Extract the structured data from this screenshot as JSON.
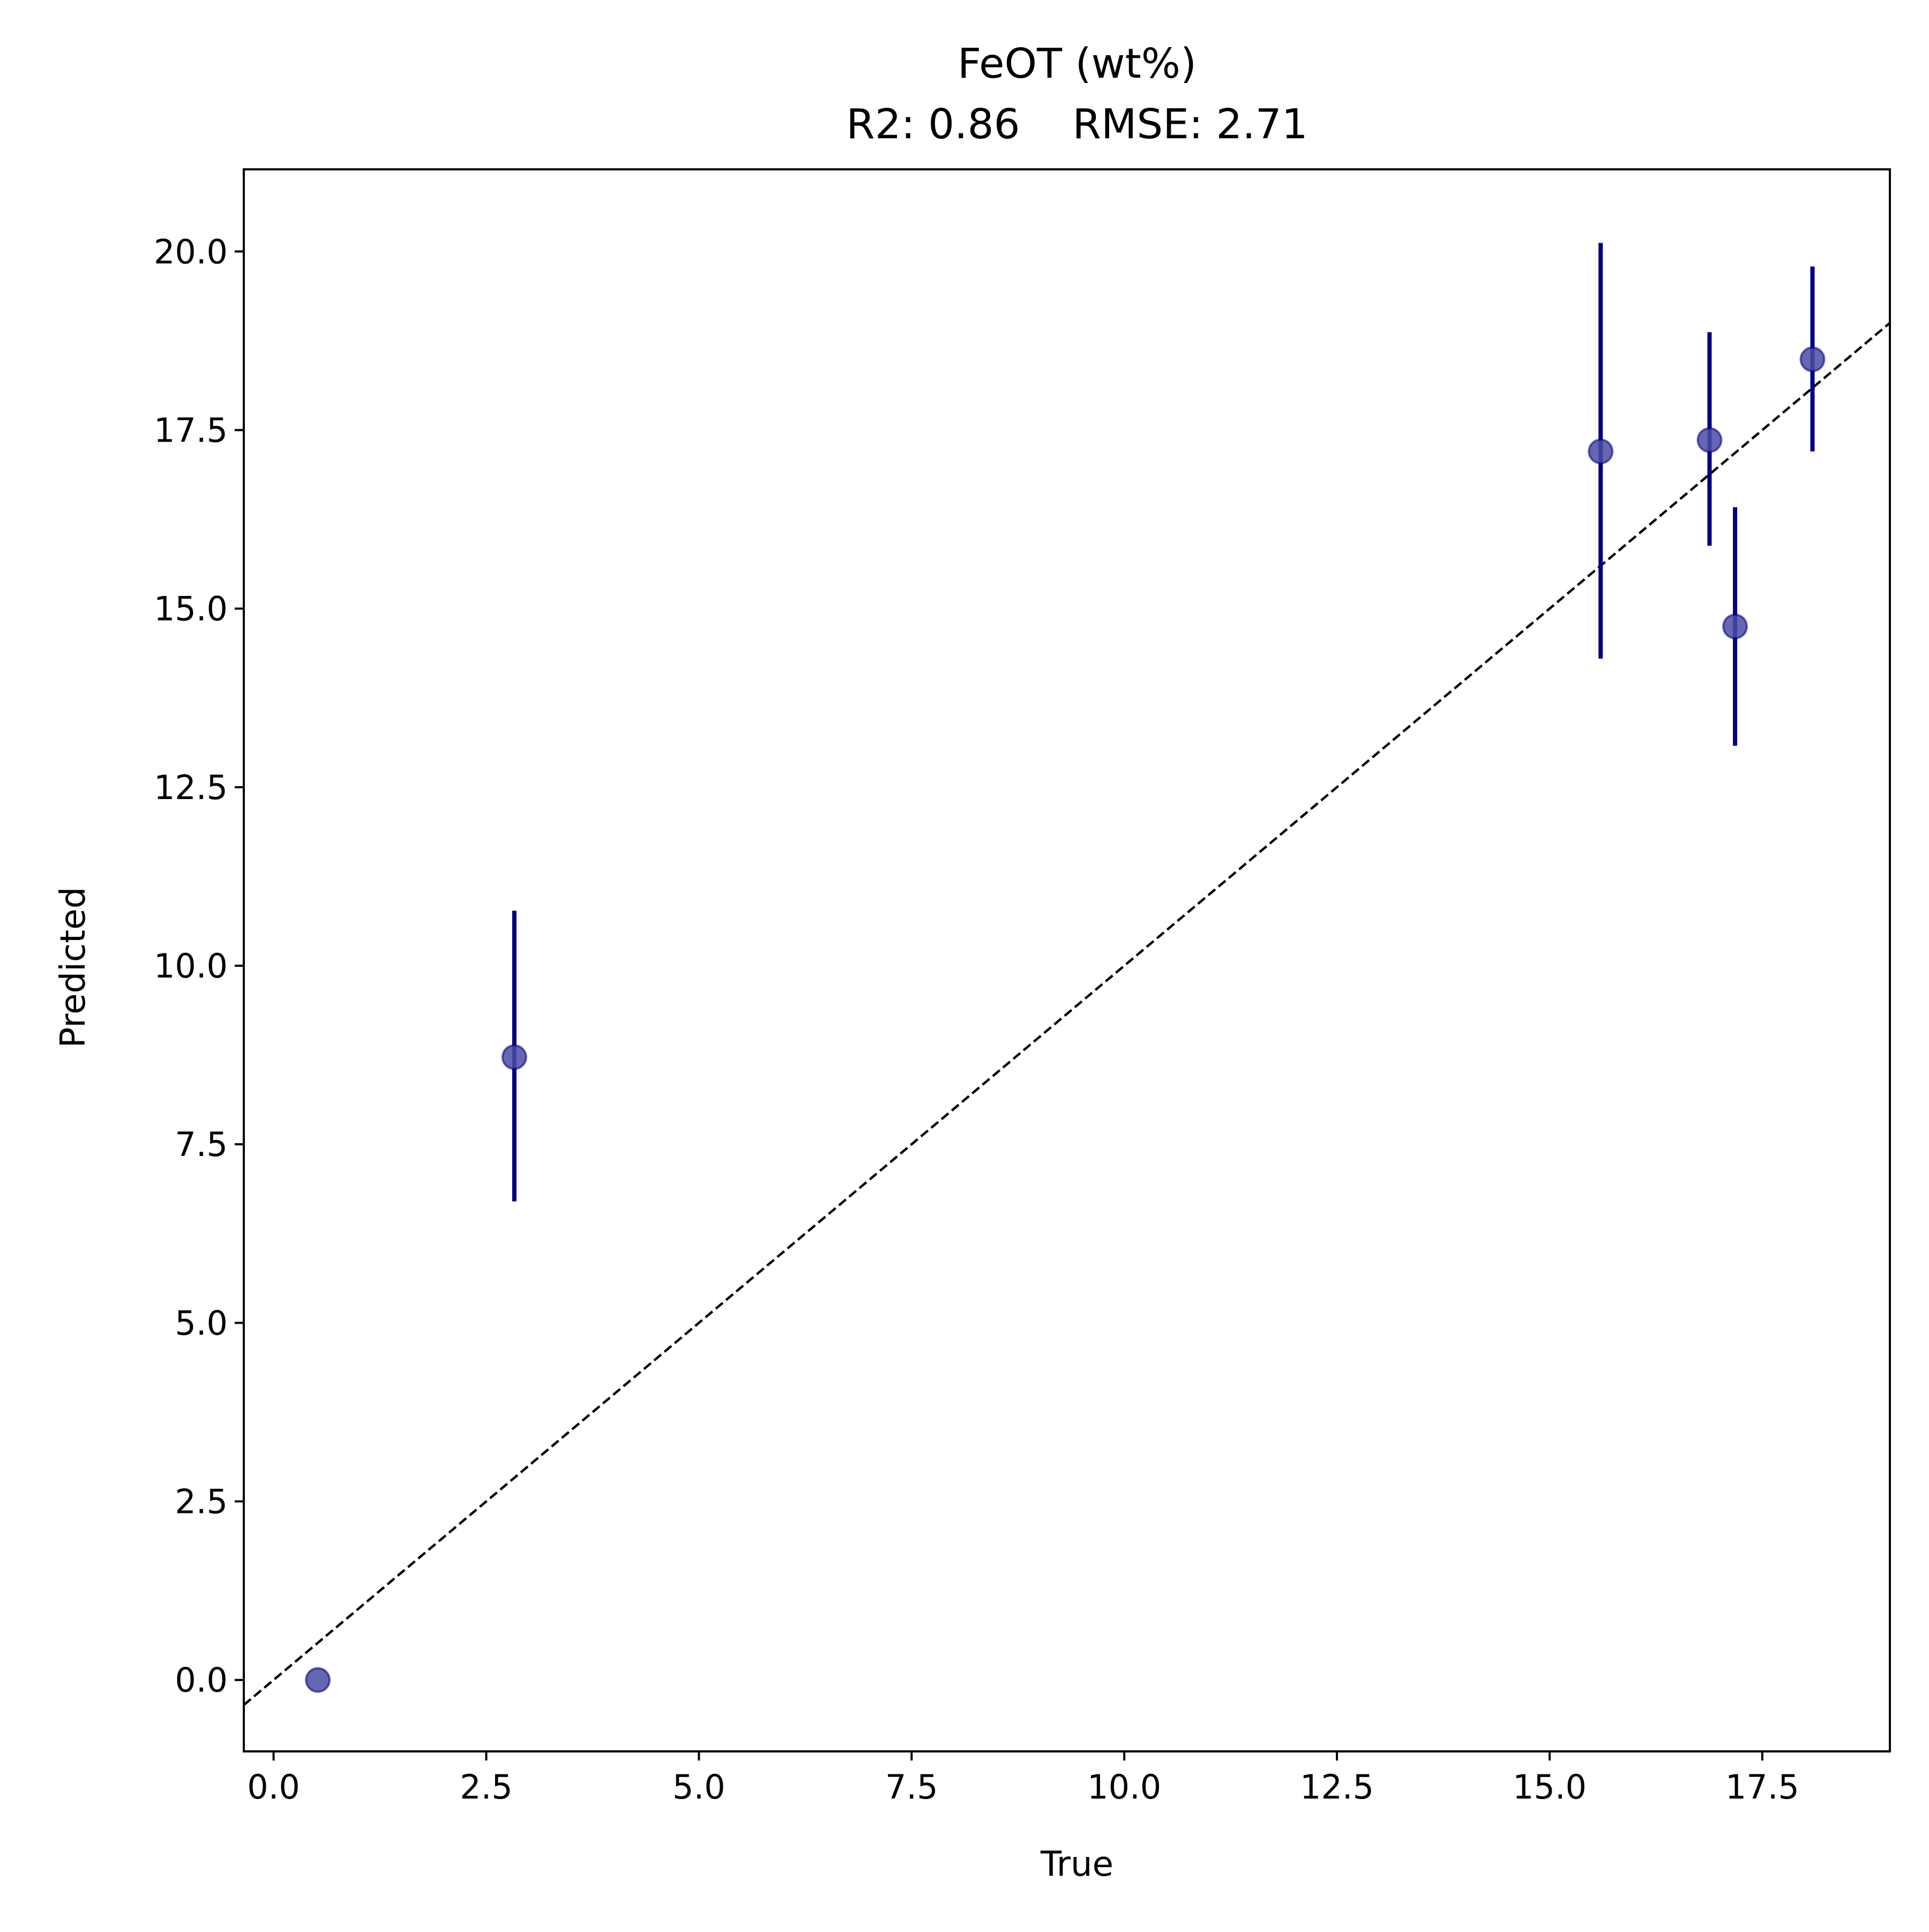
{
  "chart_data": {
    "type": "scatter",
    "title": "FeOT (wt%)",
    "subtitle": "R2: 0.86    RMSE: 2.71",
    "xlabel": "True",
    "ylabel": "Predicted",
    "xlim": [
      -0.35,
      19.0
    ],
    "ylim": [
      -1.0,
      21.15
    ],
    "x_ticks": [
      0.0,
      2.5,
      5.0,
      7.5,
      10.0,
      12.5,
      15.0,
      17.5
    ],
    "y_ticks": [
      0.0,
      2.5,
      5.0,
      7.5,
      10.0,
      12.5,
      15.0,
      17.5,
      20.0
    ],
    "x_tick_labels": [
      "0.0",
      "2.5",
      "5.0",
      "7.5",
      "10.0",
      "12.5",
      "15.0",
      "17.5"
    ],
    "y_tick_labels": [
      "0.0",
      "2.5",
      "5.0",
      "7.5",
      "10.0",
      "12.5",
      "15.0",
      "17.5",
      "20.0"
    ],
    "grid": false,
    "reference_line": {
      "style": "dashed",
      "color": "#000000",
      "slope": 1,
      "intercept": 0
    },
    "series": [
      {
        "color": "#000080",
        "marker_color": "#4b4ba5",
        "points": [
          {
            "x": 0.52,
            "y": 0.0,
            "err_low": 0.0,
            "err_high": 0.0
          },
          {
            "x": 2.83,
            "y": 8.72,
            "err_low": 6.7,
            "err_high": 10.77
          },
          {
            "x": 15.6,
            "y": 17.2,
            "err_low": 14.3,
            "err_high": 20.12
          },
          {
            "x": 16.88,
            "y": 17.36,
            "err_low": 15.88,
            "err_high": 18.87
          },
          {
            "x": 17.18,
            "y": 14.75,
            "err_low": 13.08,
            "err_high": 16.42
          },
          {
            "x": 18.09,
            "y": 18.49,
            "err_low": 17.2,
            "err_high": 19.79
          }
        ]
      }
    ]
  }
}
